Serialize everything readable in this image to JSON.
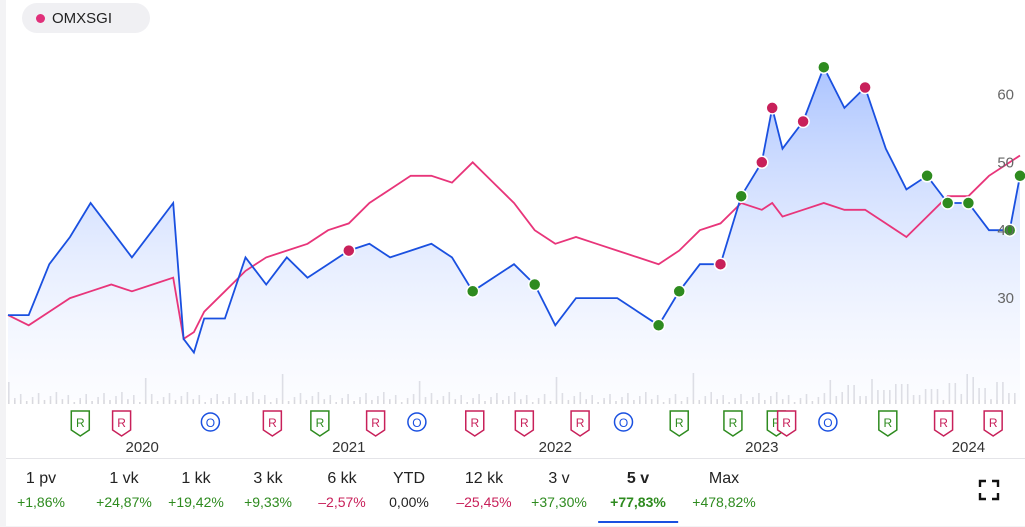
{
  "legend": {
    "label": "OMXSGI",
    "color": "#e0307a"
  },
  "colors": {
    "price": "#1a50e0",
    "index": "#e8357a",
    "positive": "#2e8b1f",
    "negative": "#c8205a",
    "neutral": "#222222"
  },
  "chart_data": {
    "type": "line",
    "y_ticks": [
      "30",
      "40",
      "50",
      "60"
    ],
    "ylim": [
      15,
      68
    ],
    "x_ticks": [
      "2020",
      "2021",
      "2022",
      "2023",
      "2024"
    ],
    "x": [
      2019.35,
      2019.45,
      2019.55,
      2019.65,
      2019.75,
      2019.85,
      2019.95,
      2020.05,
      2020.15,
      2020.2,
      2020.25,
      2020.3,
      2020.4,
      2020.5,
      2020.6,
      2020.7,
      2020.8,
      2020.9,
      2021.0,
      2021.1,
      2021.2,
      2021.3,
      2021.4,
      2021.5,
      2021.6,
      2021.7,
      2021.8,
      2021.9,
      2022.0,
      2022.1,
      2022.2,
      2022.3,
      2022.4,
      2022.5,
      2022.6,
      2022.7,
      2022.8,
      2022.9,
      2023.0,
      2023.05,
      2023.1,
      2023.2,
      2023.3,
      2023.4,
      2023.5,
      2023.6,
      2023.7,
      2023.8,
      2023.9,
      2024.0,
      2024.1,
      2024.2,
      2024.25
    ],
    "series": [
      {
        "name": "",
        "values": [
          27.5,
          27.5,
          35,
          39,
          44,
          40,
          36,
          40,
          44,
          24,
          22,
          27,
          27,
          36,
          32,
          36,
          33,
          35,
          37,
          38,
          36,
          37,
          38,
          36,
          31,
          33,
          35,
          32,
          26,
          30,
          30,
          30,
          28,
          26,
          31,
          35,
          35,
          45,
          50,
          58,
          52,
          56,
          64,
          58,
          61,
          52,
          46,
          48,
          44,
          44,
          40,
          40,
          48
        ]
      },
      {
        "name": "OMXSGI",
        "values": [
          27.5,
          26,
          28,
          30,
          31,
          32,
          31,
          32,
          33,
          24,
          25,
          28,
          31,
          34,
          36,
          37,
          38,
          40,
          41,
          44,
          46,
          48,
          48,
          47,
          50,
          47,
          44,
          40,
          38,
          39,
          38,
          37,
          36,
          35,
          37,
          40,
          41,
          44,
          43,
          44,
          42,
          43,
          44,
          43,
          43,
          41,
          39,
          42,
          45,
          45,
          48,
          50,
          51
        ]
      }
    ]
  },
  "report_markers": [
    {
      "label": "R",
      "x": 2019.7,
      "kind": "positive"
    },
    {
      "label": "R",
      "x": 2019.9,
      "kind": "negative"
    },
    {
      "label": "O",
      "x": 2020.33,
      "kind": "neutral"
    },
    {
      "label": "R",
      "x": 2020.63,
      "kind": "negative"
    },
    {
      "label": "R",
      "x": 2020.86,
      "kind": "positive"
    },
    {
      "label": "R",
      "x": 2021.13,
      "kind": "negative"
    },
    {
      "label": "O",
      "x": 2021.33,
      "kind": "neutral"
    },
    {
      "label": "R",
      "x": 2021.61,
      "kind": "negative"
    },
    {
      "label": "R",
      "x": 2021.85,
      "kind": "negative"
    },
    {
      "label": "R",
      "x": 2022.12,
      "kind": "negative"
    },
    {
      "label": "O",
      "x": 2022.33,
      "kind": "neutral"
    },
    {
      "label": "R",
      "x": 2022.6,
      "kind": "positive"
    },
    {
      "label": "R",
      "x": 2022.86,
      "kind": "positive"
    },
    {
      "label": "R",
      "x": 2023.07,
      "kind": "positive"
    },
    {
      "label": "R",
      "x": 2023.12,
      "kind": "negative"
    },
    {
      "label": "O",
      "x": 2023.32,
      "kind": "neutral"
    },
    {
      "label": "R",
      "x": 2023.61,
      "kind": "positive"
    },
    {
      "label": "R",
      "x": 2023.88,
      "kind": "negative"
    },
    {
      "label": "R",
      "x": 2024.12,
      "kind": "negative"
    }
  ],
  "periods": [
    {
      "label": "1 pv",
      "value": "+1,86%",
      "kind": "positive"
    },
    {
      "label": "1 vk",
      "value": "+24,87%",
      "kind": "positive"
    },
    {
      "label": "1 kk",
      "value": "+19,42%",
      "kind": "positive"
    },
    {
      "label": "3 kk",
      "value": "+9,33%",
      "kind": "positive"
    },
    {
      "label": "6 kk",
      "value": "–2,57%",
      "kind": "negative"
    },
    {
      "label": "YTD",
      "value": "0,00%",
      "kind": "neutral"
    },
    {
      "label": "12 kk",
      "value": "–25,45%",
      "kind": "negative"
    },
    {
      "label": "3 v",
      "value": "+37,30%",
      "kind": "positive"
    },
    {
      "label": "5 v",
      "value": "+77,83%",
      "kind": "positive",
      "active": true
    },
    {
      "label": "Max",
      "value": "+478,82%",
      "kind": "positive"
    }
  ]
}
